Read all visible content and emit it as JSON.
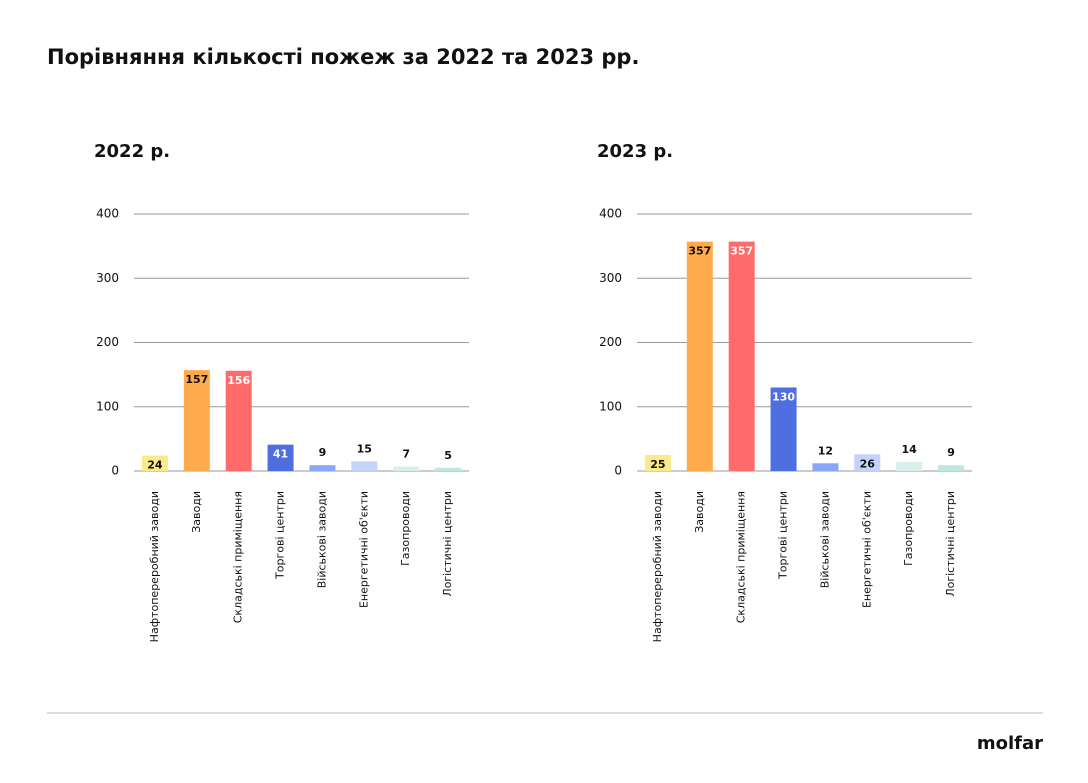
{
  "title": "Порівняння кількості пожеж за 2022 та 2023 рр.",
  "logo": "molfar",
  "chart_data": [
    {
      "type": "bar",
      "title": "2022 р.",
      "categories": [
        "Нафтопереробний заводи",
        "Заводи",
        "Складські приміщення",
        "Торгові центри",
        "Військові заводи",
        "Енергетичні об'єкти",
        "Газопроводи",
        "Логістичні центри"
      ],
      "values": [
        24,
        157,
        156,
        41,
        9,
        15,
        7,
        5
      ],
      "colors": [
        "#fbe98c",
        "#ffaa4d",
        "#ff6b6b",
        "#4f6fe0",
        "#8aa7f5",
        "#c3d3f9",
        "#d8efeb",
        "#bde8df"
      ],
      "ylim": [
        0,
        400
      ],
      "yticks": [
        0,
        100,
        200,
        300,
        400
      ],
      "grid": true
    },
    {
      "type": "bar",
      "title": "2023 р.",
      "categories": [
        "Нафтопереробний заводи",
        "Заводи",
        "Складські приміщення",
        "Торгові центри",
        "Військові заводи",
        "Енергетичні об'єкти",
        "Газопроводи",
        "Логістичні центри"
      ],
      "values": [
        25,
        357,
        357,
        130,
        12,
        26,
        14,
        9
      ],
      "colors": [
        "#fbe98c",
        "#ffaa4d",
        "#ff6b6b",
        "#4f6fe0",
        "#8aa7f5",
        "#c3d3f9",
        "#d8efeb",
        "#bde8df"
      ],
      "ylim": [
        0,
        400
      ],
      "yticks": [
        0,
        100,
        200,
        300,
        400
      ],
      "grid": true
    }
  ]
}
